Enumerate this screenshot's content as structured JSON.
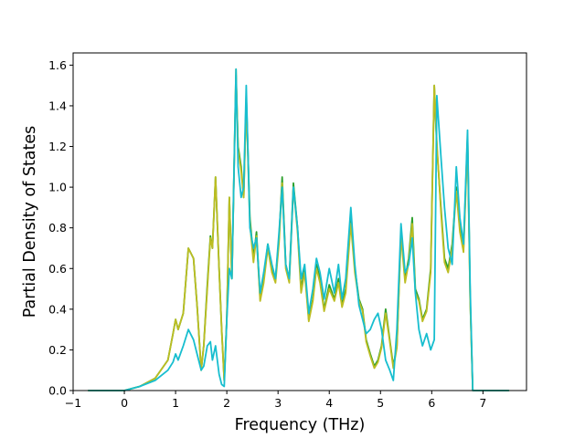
{
  "chart_data": {
    "type": "line",
    "xlabel": "Frequency (THz)",
    "ylabel": "Partial Density of States",
    "xlim": [
      -1.0,
      7.85
    ],
    "ylim": [
      0.0,
      1.66
    ],
    "xticks": [
      -1,
      0,
      1,
      2,
      3,
      4,
      5,
      6,
      7
    ],
    "yticks": [
      0.0,
      0.2,
      0.4,
      0.6,
      0.8,
      1.0,
      1.2,
      1.4,
      1.6
    ],
    "ytick_labels": [
      "0.0",
      "0.2",
      "0.4",
      "0.6",
      "0.8",
      "1.0",
      "1.2",
      "1.4",
      "1.6"
    ],
    "grid": false,
    "series": [
      {
        "color": "#2ca02c",
        "points": [
          [
            -0.7,
            0.0
          ],
          [
            0.0,
            0.0
          ],
          [
            0.3,
            0.02
          ],
          [
            0.6,
            0.06
          ],
          [
            0.85,
            0.15
          ],
          [
            0.95,
            0.28
          ],
          [
            1.0,
            0.35
          ],
          [
            1.05,
            0.3
          ],
          [
            1.15,
            0.38
          ],
          [
            1.25,
            0.7
          ],
          [
            1.35,
            0.65
          ],
          [
            1.42,
            0.42
          ],
          [
            1.5,
            0.1
          ],
          [
            1.55,
            0.22
          ],
          [
            1.62,
            0.52
          ],
          [
            1.68,
            0.76
          ],
          [
            1.72,
            0.7
          ],
          [
            1.78,
            1.05
          ],
          [
            1.85,
            0.6
          ],
          [
            1.9,
            0.3
          ],
          [
            1.95,
            0.05
          ],
          [
            2.0,
            0.35
          ],
          [
            2.05,
            0.95
          ],
          [
            2.1,
            0.55
          ],
          [
            2.18,
            1.55
          ],
          [
            2.22,
            1.2
          ],
          [
            2.28,
            1.1
          ],
          [
            2.33,
            0.95
          ],
          [
            2.38,
            1.45
          ],
          [
            2.45,
            0.85
          ],
          [
            2.52,
            0.65
          ],
          [
            2.58,
            0.78
          ],
          [
            2.65,
            0.45
          ],
          [
            2.72,
            0.55
          ],
          [
            2.8,
            0.72
          ],
          [
            2.88,
            0.6
          ],
          [
            2.95,
            0.55
          ],
          [
            3.02,
            0.75
          ],
          [
            3.08,
            1.05
          ],
          [
            3.15,
            0.62
          ],
          [
            3.22,
            0.55
          ],
          [
            3.3,
            1.02
          ],
          [
            3.38,
            0.8
          ],
          [
            3.45,
            0.5
          ],
          [
            3.52,
            0.6
          ],
          [
            3.6,
            0.35
          ],
          [
            3.68,
            0.45
          ],
          [
            3.75,
            0.62
          ],
          [
            3.82,
            0.55
          ],
          [
            3.9,
            0.4
          ],
          [
            4.0,
            0.52
          ],
          [
            4.1,
            0.45
          ],
          [
            4.18,
            0.55
          ],
          [
            4.25,
            0.42
          ],
          [
            4.32,
            0.5
          ],
          [
            4.42,
            0.85
          ],
          [
            4.5,
            0.6
          ],
          [
            4.58,
            0.45
          ],
          [
            4.65,
            0.4
          ],
          [
            4.72,
            0.25
          ],
          [
            4.8,
            0.18
          ],
          [
            4.88,
            0.12
          ],
          [
            4.95,
            0.15
          ],
          [
            5.02,
            0.22
          ],
          [
            5.1,
            0.4
          ],
          [
            5.18,
            0.25
          ],
          [
            5.25,
            0.12
          ],
          [
            5.32,
            0.22
          ],
          [
            5.4,
            0.78
          ],
          [
            5.48,
            0.55
          ],
          [
            5.55,
            0.65
          ],
          [
            5.62,
            0.85
          ],
          [
            5.68,
            0.5
          ],
          [
            5.75,
            0.45
          ],
          [
            5.82,
            0.35
          ],
          [
            5.9,
            0.4
          ],
          [
            5.98,
            0.6
          ],
          [
            6.05,
            1.5
          ],
          [
            6.1,
            1.2
          ],
          [
            6.18,
            0.9
          ],
          [
            6.25,
            0.65
          ],
          [
            6.32,
            0.6
          ],
          [
            6.4,
            0.72
          ],
          [
            6.48,
            1.0
          ],
          [
            6.55,
            0.8
          ],
          [
            6.62,
            0.7
          ],
          [
            6.7,
            1.25
          ],
          [
            6.75,
            0.45
          ],
          [
            6.8,
            0.0
          ],
          [
            7.5,
            0.0
          ]
        ]
      },
      {
        "color": "#bcbd22",
        "points": [
          [
            -0.7,
            0.0
          ],
          [
            0.0,
            0.0
          ],
          [
            0.3,
            0.02
          ],
          [
            0.6,
            0.06
          ],
          [
            0.85,
            0.15
          ],
          [
            0.95,
            0.28
          ],
          [
            1.0,
            0.35
          ],
          [
            1.05,
            0.3
          ],
          [
            1.15,
            0.38
          ],
          [
            1.25,
            0.7
          ],
          [
            1.35,
            0.65
          ],
          [
            1.42,
            0.42
          ],
          [
            1.5,
            0.1
          ],
          [
            1.55,
            0.22
          ],
          [
            1.62,
            0.5
          ],
          [
            1.68,
            0.75
          ],
          [
            1.72,
            0.7
          ],
          [
            1.78,
            1.05
          ],
          [
            1.85,
            0.6
          ],
          [
            1.9,
            0.3
          ],
          [
            1.95,
            0.05
          ],
          [
            2.0,
            0.35
          ],
          [
            2.05,
            0.95
          ],
          [
            2.1,
            0.55
          ],
          [
            2.18,
            1.58
          ],
          [
            2.22,
            1.18
          ],
          [
            2.28,
            1.08
          ],
          [
            2.33,
            0.95
          ],
          [
            2.38,
            1.42
          ],
          [
            2.45,
            0.82
          ],
          [
            2.52,
            0.63
          ],
          [
            2.58,
            0.76
          ],
          [
            2.65,
            0.44
          ],
          [
            2.72,
            0.53
          ],
          [
            2.8,
            0.7
          ],
          [
            2.88,
            0.58
          ],
          [
            2.95,
            0.53
          ],
          [
            3.02,
            0.73
          ],
          [
            3.08,
            1.02
          ],
          [
            3.15,
            0.6
          ],
          [
            3.22,
            0.53
          ],
          [
            3.3,
            1.0
          ],
          [
            3.38,
            0.78
          ],
          [
            3.45,
            0.48
          ],
          [
            3.52,
            0.58
          ],
          [
            3.6,
            0.34
          ],
          [
            3.68,
            0.44
          ],
          [
            3.75,
            0.6
          ],
          [
            3.82,
            0.53
          ],
          [
            3.9,
            0.39
          ],
          [
            4.0,
            0.5
          ],
          [
            4.1,
            0.44
          ],
          [
            4.18,
            0.53
          ],
          [
            4.25,
            0.41
          ],
          [
            4.32,
            0.48
          ],
          [
            4.42,
            0.82
          ],
          [
            4.5,
            0.58
          ],
          [
            4.58,
            0.44
          ],
          [
            4.65,
            0.39
          ],
          [
            4.72,
            0.24
          ],
          [
            4.8,
            0.17
          ],
          [
            4.88,
            0.11
          ],
          [
            4.95,
            0.14
          ],
          [
            5.02,
            0.21
          ],
          [
            5.1,
            0.38
          ],
          [
            5.18,
            0.24
          ],
          [
            5.25,
            0.11
          ],
          [
            5.32,
            0.21
          ],
          [
            5.4,
            0.76
          ],
          [
            5.48,
            0.53
          ],
          [
            5.55,
            0.63
          ],
          [
            5.62,
            0.82
          ],
          [
            5.68,
            0.48
          ],
          [
            5.75,
            0.44
          ],
          [
            5.82,
            0.34
          ],
          [
            5.9,
            0.39
          ],
          [
            5.98,
            0.58
          ],
          [
            6.05,
            1.5
          ],
          [
            6.1,
            1.22
          ],
          [
            6.18,
            0.88
          ],
          [
            6.25,
            0.63
          ],
          [
            6.32,
            0.58
          ],
          [
            6.4,
            0.7
          ],
          [
            6.48,
            0.98
          ],
          [
            6.55,
            0.78
          ],
          [
            6.62,
            0.68
          ],
          [
            6.7,
            1.22
          ],
          [
            6.75,
            0.44
          ],
          [
            6.8,
            0.0
          ],
          [
            7.5,
            0.0
          ]
        ]
      },
      {
        "color": "#17becf",
        "points": [
          [
            -0.7,
            0.0
          ],
          [
            0.0,
            0.0
          ],
          [
            0.3,
            0.02
          ],
          [
            0.6,
            0.05
          ],
          [
            0.85,
            0.1
          ],
          [
            0.95,
            0.14
          ],
          [
            1.0,
            0.18
          ],
          [
            1.05,
            0.15
          ],
          [
            1.15,
            0.22
          ],
          [
            1.25,
            0.3
          ],
          [
            1.35,
            0.25
          ],
          [
            1.42,
            0.18
          ],
          [
            1.5,
            0.1
          ],
          [
            1.55,
            0.12
          ],
          [
            1.62,
            0.22
          ],
          [
            1.68,
            0.24
          ],
          [
            1.72,
            0.15
          ],
          [
            1.78,
            0.22
          ],
          [
            1.85,
            0.08
          ],
          [
            1.9,
            0.03
          ],
          [
            1.95,
            0.02
          ],
          [
            2.0,
            0.35
          ],
          [
            2.05,
            0.6
          ],
          [
            2.1,
            0.55
          ],
          [
            2.18,
            1.58
          ],
          [
            2.22,
            1.1
          ],
          [
            2.28,
            0.95
          ],
          [
            2.33,
            1.0
          ],
          [
            2.38,
            1.5
          ],
          [
            2.45,
            0.8
          ],
          [
            2.52,
            0.7
          ],
          [
            2.58,
            0.75
          ],
          [
            2.65,
            0.48
          ],
          [
            2.72,
            0.58
          ],
          [
            2.8,
            0.72
          ],
          [
            2.88,
            0.62
          ],
          [
            2.95,
            0.55
          ],
          [
            3.02,
            0.78
          ],
          [
            3.08,
            1.0
          ],
          [
            3.15,
            0.62
          ],
          [
            3.22,
            0.55
          ],
          [
            3.3,
            1.0
          ],
          [
            3.38,
            0.8
          ],
          [
            3.45,
            0.55
          ],
          [
            3.52,
            0.62
          ],
          [
            3.6,
            0.38
          ],
          [
            3.68,
            0.5
          ],
          [
            3.75,
            0.65
          ],
          [
            3.82,
            0.58
          ],
          [
            3.9,
            0.45
          ],
          [
            4.0,
            0.6
          ],
          [
            4.1,
            0.48
          ],
          [
            4.18,
            0.62
          ],
          [
            4.25,
            0.45
          ],
          [
            4.32,
            0.55
          ],
          [
            4.42,
            0.9
          ],
          [
            4.5,
            0.62
          ],
          [
            4.58,
            0.42
          ],
          [
            4.65,
            0.35
          ],
          [
            4.72,
            0.28
          ],
          [
            4.8,
            0.3
          ],
          [
            4.88,
            0.35
          ],
          [
            4.95,
            0.38
          ],
          [
            5.02,
            0.3
          ],
          [
            5.1,
            0.15
          ],
          [
            5.18,
            0.1
          ],
          [
            5.25,
            0.05
          ],
          [
            5.32,
            0.3
          ],
          [
            5.4,
            0.82
          ],
          [
            5.48,
            0.58
          ],
          [
            5.55,
            0.62
          ],
          [
            5.62,
            0.75
          ],
          [
            5.68,
            0.48
          ],
          [
            5.75,
            0.3
          ],
          [
            5.82,
            0.22
          ],
          [
            5.9,
            0.28
          ],
          [
            5.98,
            0.2
          ],
          [
            6.05,
            0.25
          ],
          [
            6.1,
            1.45
          ],
          [
            6.18,
            1.15
          ],
          [
            6.25,
            0.9
          ],
          [
            6.32,
            0.7
          ],
          [
            6.4,
            0.62
          ],
          [
            6.48,
            1.1
          ],
          [
            6.55,
            0.85
          ],
          [
            6.62,
            0.72
          ],
          [
            6.7,
            1.28
          ],
          [
            6.75,
            0.5
          ],
          [
            6.8,
            0.0
          ],
          [
            7.5,
            0.0
          ]
        ]
      }
    ]
  }
}
